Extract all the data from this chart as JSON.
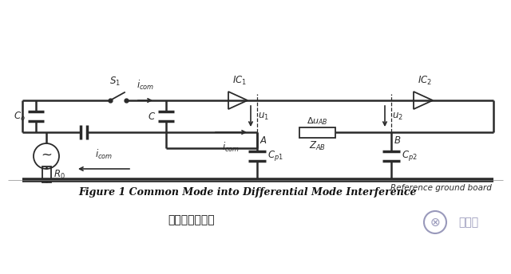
{
  "bg_color": "#ffffff",
  "line_color": "#2a2a2a",
  "title_text": "Figure 1 Common Mode into Differential Mode Interference",
  "subtitle_text": "差模干扰的共模",
  "ref_ground_text": "Reference ground board",
  "fig_width": 6.4,
  "fig_height": 3.44,
  "dpi": 100
}
